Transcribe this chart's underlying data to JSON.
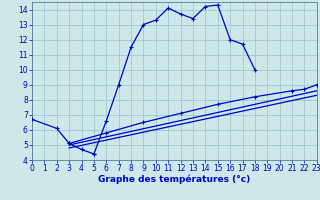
{
  "xlabel": "Graphe des températures (°c)",
  "xlim": [
    0,
    23
  ],
  "ylim": [
    4,
    14.5
  ],
  "yticks": [
    4,
    5,
    6,
    7,
    8,
    9,
    10,
    11,
    12,
    13,
    14
  ],
  "xticks": [
    0,
    1,
    2,
    3,
    4,
    5,
    6,
    7,
    8,
    9,
    10,
    11,
    12,
    13,
    14,
    15,
    16,
    17,
    18,
    19,
    20,
    21,
    22,
    23
  ],
  "bg_color": "#cce8e8",
  "grid_color": "#99bfcc",
  "line_color": "#0000cc",
  "main_x": [
    0,
    2,
    3,
    4,
    5,
    5,
    6,
    7,
    8,
    9,
    10,
    11,
    12,
    13,
    14,
    15,
    16,
    17,
    18
  ],
  "main_y": [
    6.7,
    6.1,
    5.1,
    4.7,
    4.4,
    4.4,
    6.6,
    9.0,
    11.5,
    13.0,
    13.3,
    14.1,
    13.7,
    13.4,
    14.2,
    14.3,
    12.0,
    11.7,
    10.0
  ],
  "line1_x": [
    3,
    23
  ],
  "line1_y": [
    5.1,
    9.0
  ],
  "line2_x": [
    3,
    23
  ],
  "line2_y": [
    5.0,
    8.6
  ],
  "line3_x": [
    3,
    23
  ],
  "line3_y": [
    4.8,
    8.3
  ],
  "dots1_x": [
    3,
    6,
    9,
    12,
    15,
    18,
    21,
    22,
    23
  ],
  "dots1_y": [
    5.1,
    5.8,
    6.5,
    7.1,
    7.7,
    8.2,
    8.6,
    8.7,
    9.0
  ]
}
